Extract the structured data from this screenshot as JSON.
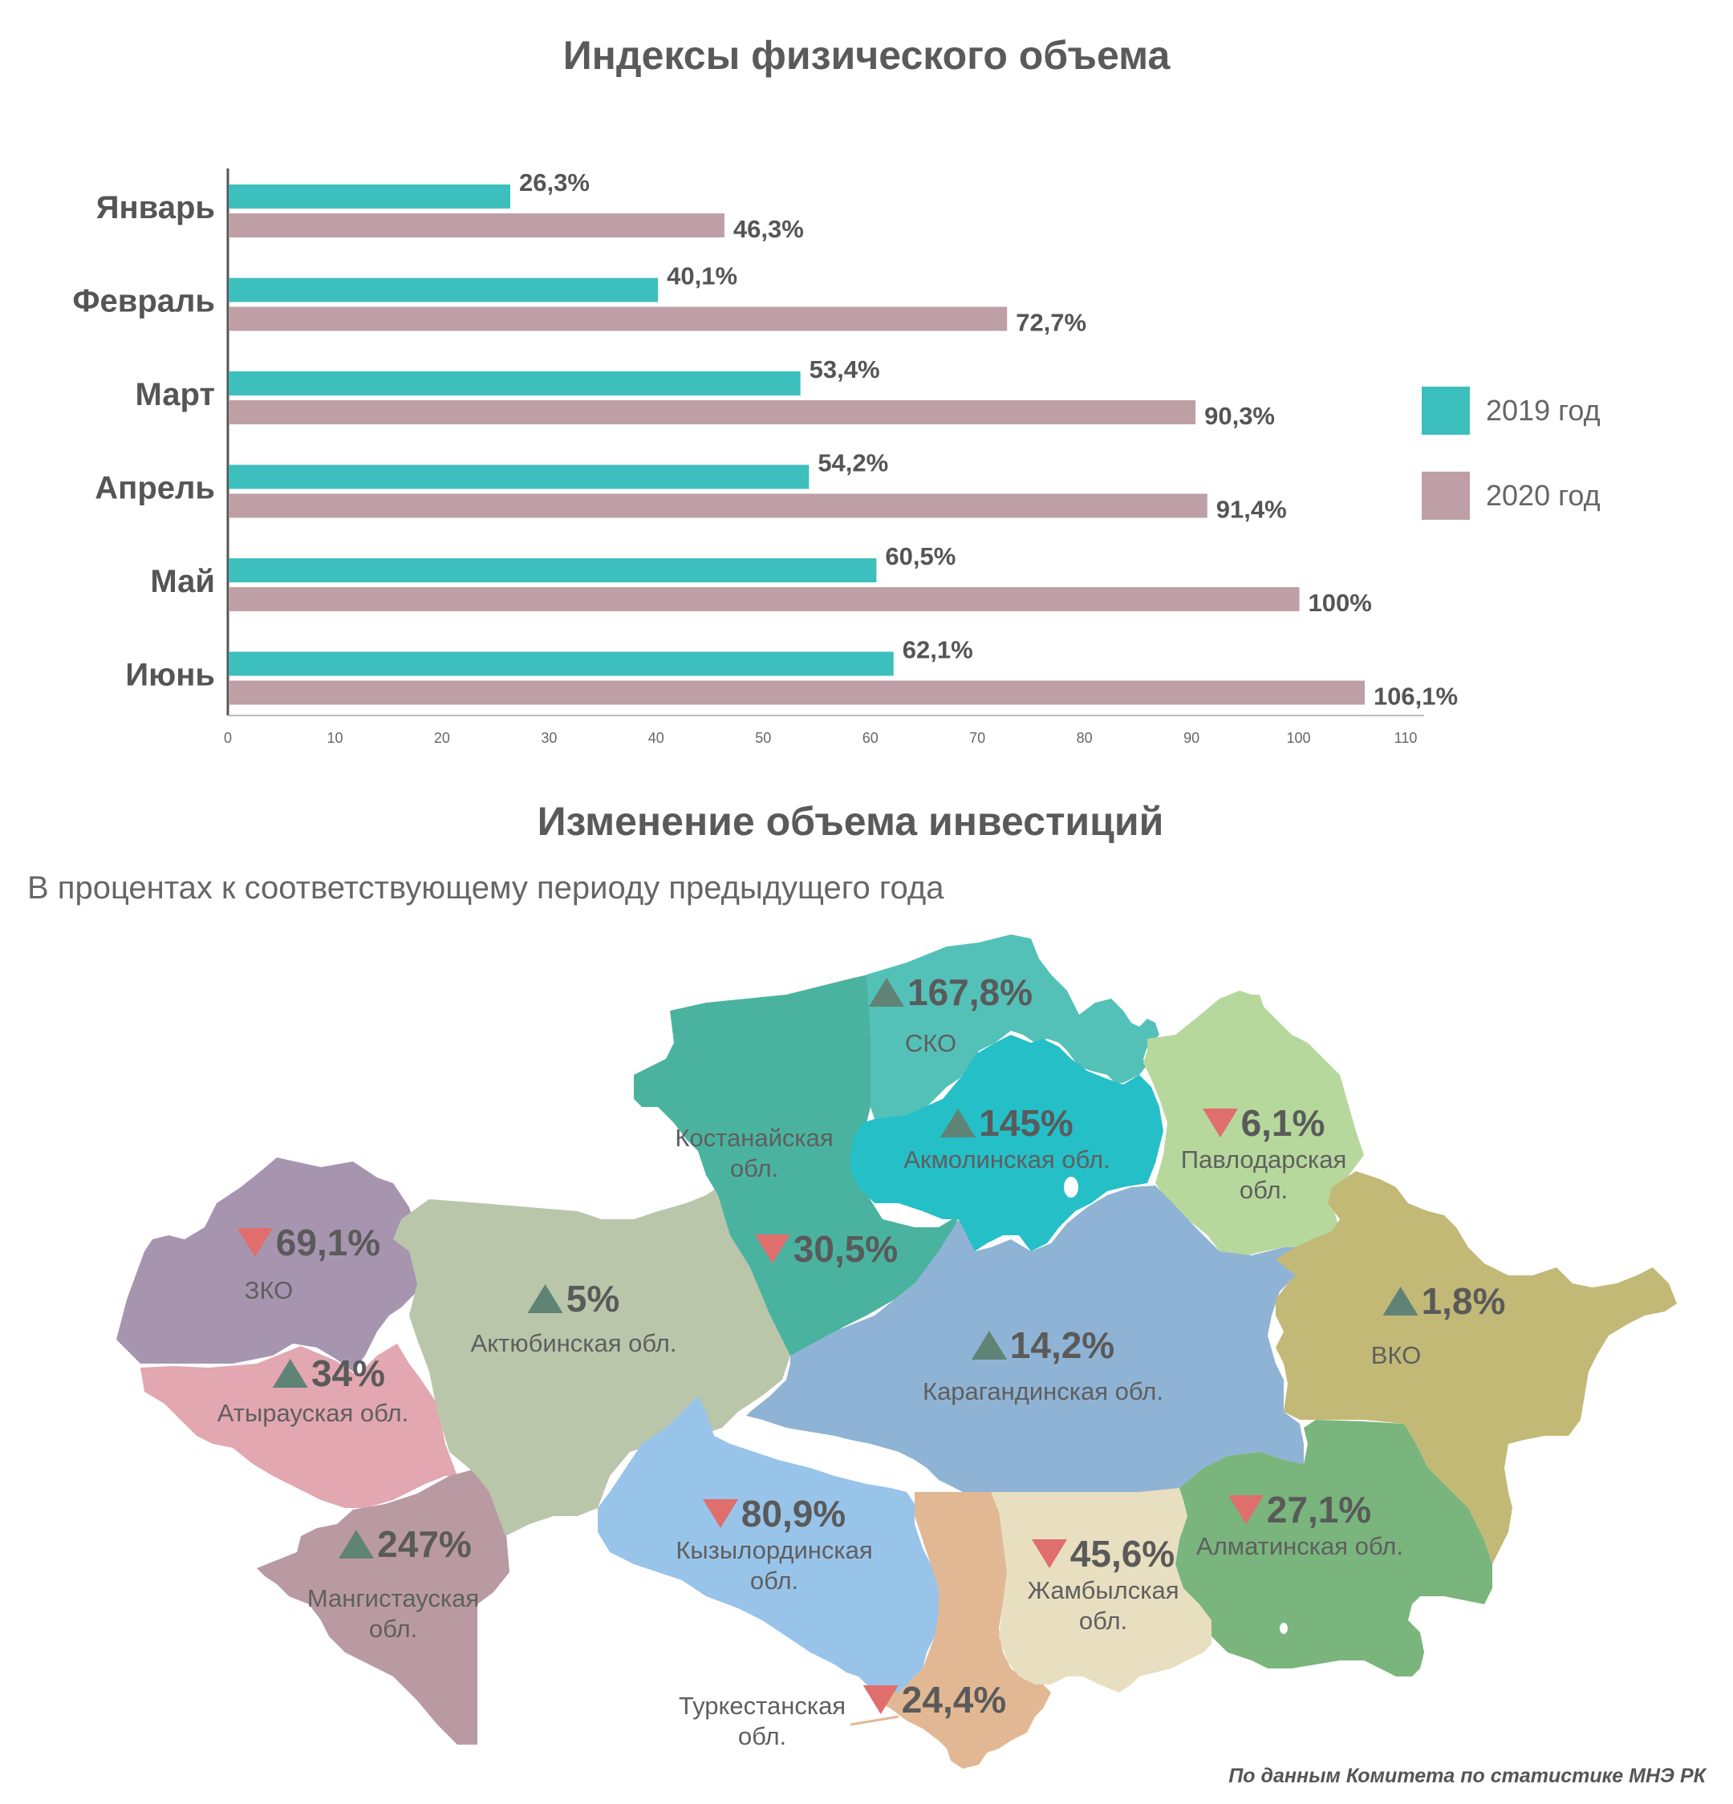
{
  "chart_data": {
    "type": "bar",
    "title": "Индексы физического объема",
    "categories": [
      "Январь",
      "Февраль",
      "Март",
      "Апрель",
      "Май",
      "Июнь"
    ],
    "series": [
      {
        "name": "2019 год",
        "color": "#3dbfbe",
        "values": [
          26.3,
          40.1,
          53.4,
          54.2,
          60.5,
          62.1
        ],
        "labels": [
          "26,3%",
          "40,1%",
          "53,4%",
          "54,2%",
          "60,5%",
          "62,1%"
        ]
      },
      {
        "name": "2020 год",
        "color": "#be9fa6",
        "values": [
          46.3,
          72.7,
          90.3,
          91.4,
          100,
          106.1
        ],
        "labels": [
          "46,3%",
          "72,7%",
          "90,3%",
          "91,4%",
          "100%",
          "106,1%"
        ]
      }
    ],
    "xlim": [
      0,
      110
    ],
    "xticks": [
      "0",
      "10",
      "20",
      "30",
      "40",
      "50",
      "60",
      "70",
      "80",
      "90",
      "100",
      "110"
    ],
    "orientation": "horizontal",
    "legend": "right"
  },
  "map": {
    "title": "Изменение объема инвестиций",
    "subtitle": "В процентах к соответствующему периоду предыдущего года",
    "up_color": "#5f8476",
    "down_color": "#e06e6c",
    "regions": [
      {
        "id": "sko",
        "name": "СКО",
        "value": "167,8%",
        "dir": "up",
        "color": "#54c1b8"
      },
      {
        "id": "kostanay",
        "name": "Костанайская обл.",
        "value": "30,5%",
        "dir": "down",
        "color": "#4ab3a0"
      },
      {
        "id": "akmola",
        "name": "Акмолинская обл.",
        "value": "145%",
        "dir": "up",
        "color": "#25bfc8"
      },
      {
        "id": "pavlodar",
        "name": "Павлодарская обл.",
        "value": "6,1%",
        "dir": "down",
        "color": "#b6d89c"
      },
      {
        "id": "zko",
        "name": "ЗКО",
        "value": "69,1%",
        "dir": "down",
        "color": "#a795b0"
      },
      {
        "id": "aktobe",
        "name": "Актюбинская обл.",
        "value": "5%",
        "dir": "up",
        "color": "#b9c6aa"
      },
      {
        "id": "karaganda",
        "name": "Карагандинская обл.",
        "value": "14,2%",
        "dir": "up",
        "color": "#8fb3d4"
      },
      {
        "id": "vko",
        "name": "ВКО",
        "value": "1,8%",
        "dir": "up",
        "color": "#c3b977"
      },
      {
        "id": "atyrau",
        "name": "Атырауская обл.",
        "value": "34%",
        "dir": "up",
        "color": "#e3a7b1"
      },
      {
        "id": "kyzylorda",
        "name": "Кызылординская обл.",
        "value": "80,9%",
        "dir": "down",
        "color": "#98c4ea"
      },
      {
        "id": "zhambyl",
        "name": "Жамбылская обл.",
        "value": "45,6%",
        "dir": "down",
        "color": "#e7dfc0"
      },
      {
        "id": "almaty",
        "name": "Алматинская обл.",
        "value": "27,1%",
        "dir": "down",
        "color": "#79b57c"
      },
      {
        "id": "mangystau",
        "name": "Мангистауская обл.",
        "value": "247%",
        "dir": "up",
        "color": "#ba9aa2"
      },
      {
        "id": "turkestan",
        "name": "Туркестанская обл.",
        "value": "24,4%",
        "dir": "down",
        "color": "#e2b894"
      }
    ]
  },
  "source": "По данным Комитета по статистике МНЭ РК"
}
